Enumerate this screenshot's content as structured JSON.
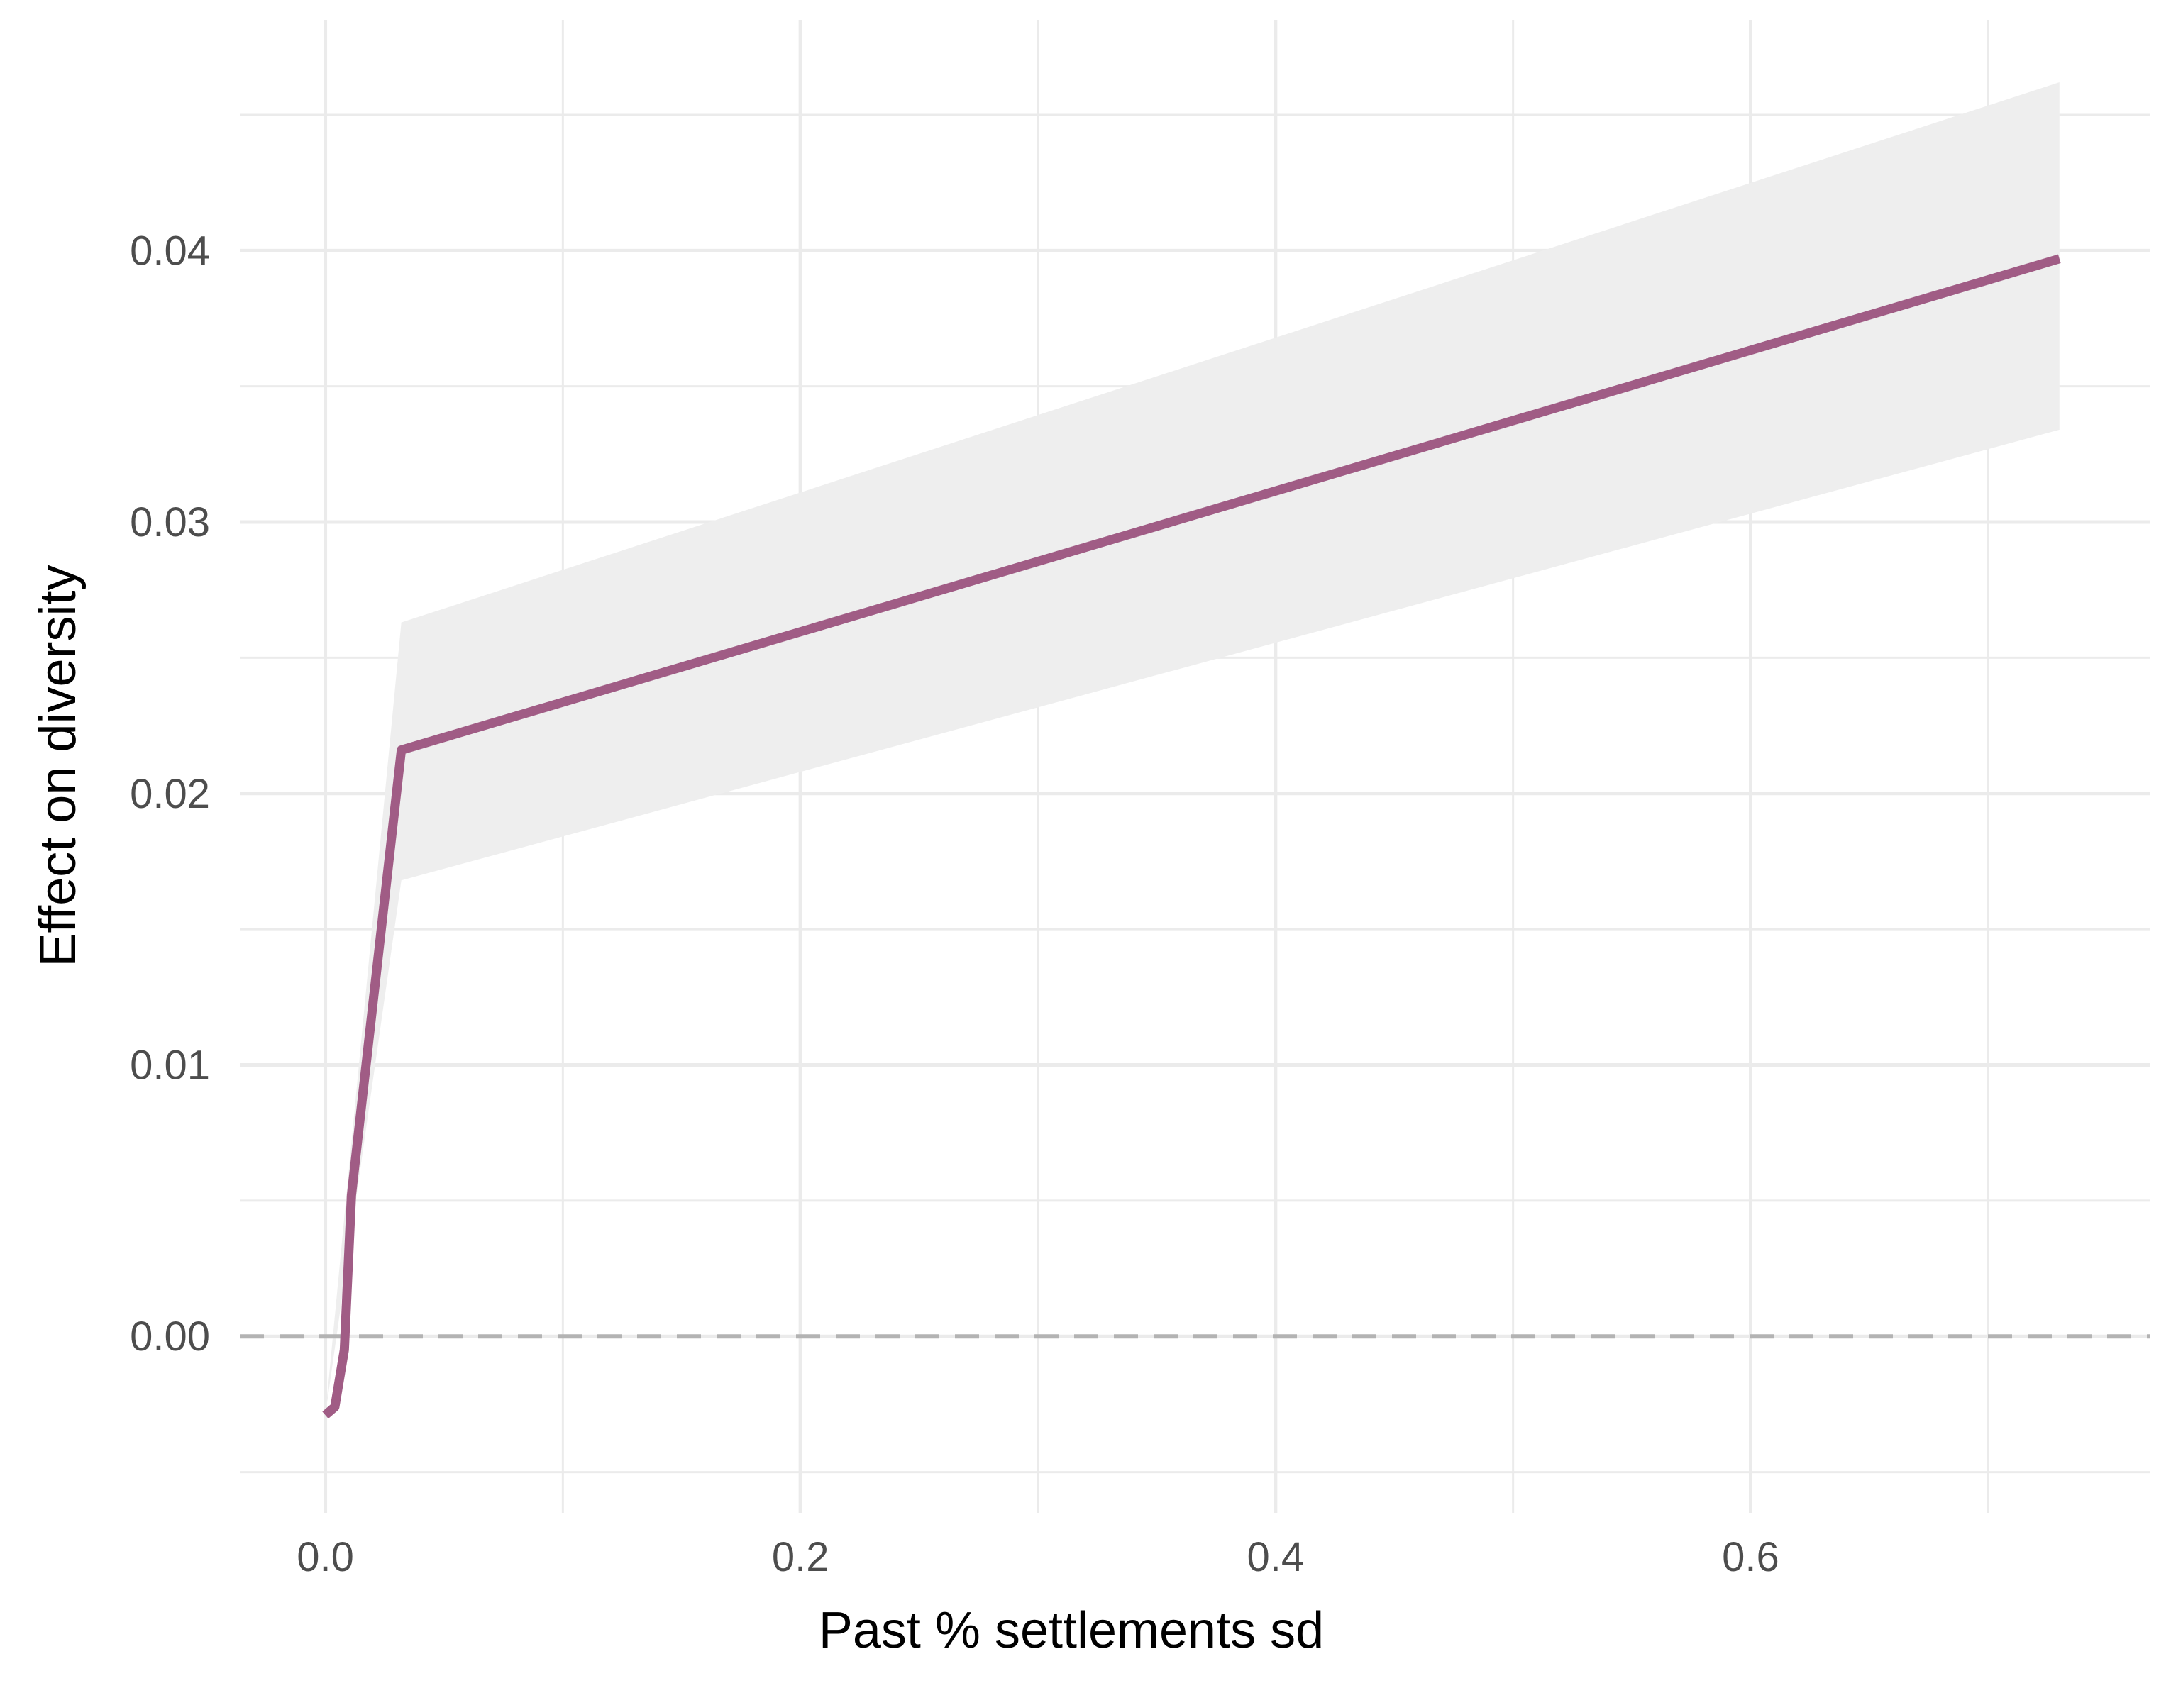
{
  "chart_data": {
    "type": "line",
    "xlabel": "Past % settlements sd",
    "ylabel": "Effect on diversity",
    "xlim": [
      -0.036,
      0.768
    ],
    "ylim": [
      -0.0065,
      0.0485
    ],
    "x_ticks": [
      0.0,
      0.2,
      0.4,
      0.6
    ],
    "x_tick_labels": [
      "0.0",
      "0.2",
      "0.4",
      "0.6"
    ],
    "x_minor_ticks": [
      0.1,
      0.3,
      0.5,
      0.7
    ],
    "y_ticks": [
      0.0,
      0.01,
      0.02,
      0.03,
      0.04
    ],
    "y_tick_labels": [
      "0.00",
      "0.01",
      "0.02",
      "0.03",
      "0.04"
    ],
    "y_minor_ticks": [
      -0.005,
      0.005,
      0.015,
      0.025,
      0.035,
      0.045
    ],
    "grid": true,
    "series": [
      {
        "x": [
          0.0,
          0.004,
          0.008,
          0.011,
          0.032,
          0.73
        ],
        "y": [
          -0.0029,
          -0.0026,
          -0.0005,
          0.0052,
          0.0216,
          0.0397
        ],
        "color": "#a05c85"
      }
    ],
    "ribbon": {
      "x": [
        0.0,
        0.032,
        0.73
      ],
      "upper": [
        -0.0029,
        0.0263,
        0.0462
      ],
      "lower": [
        -0.0029,
        0.0168,
        0.0334
      ],
      "color": "#eeeeee"
    },
    "reference_line": {
      "y": 0.0,
      "style": "dashed",
      "color": "#b3b3b3"
    }
  }
}
